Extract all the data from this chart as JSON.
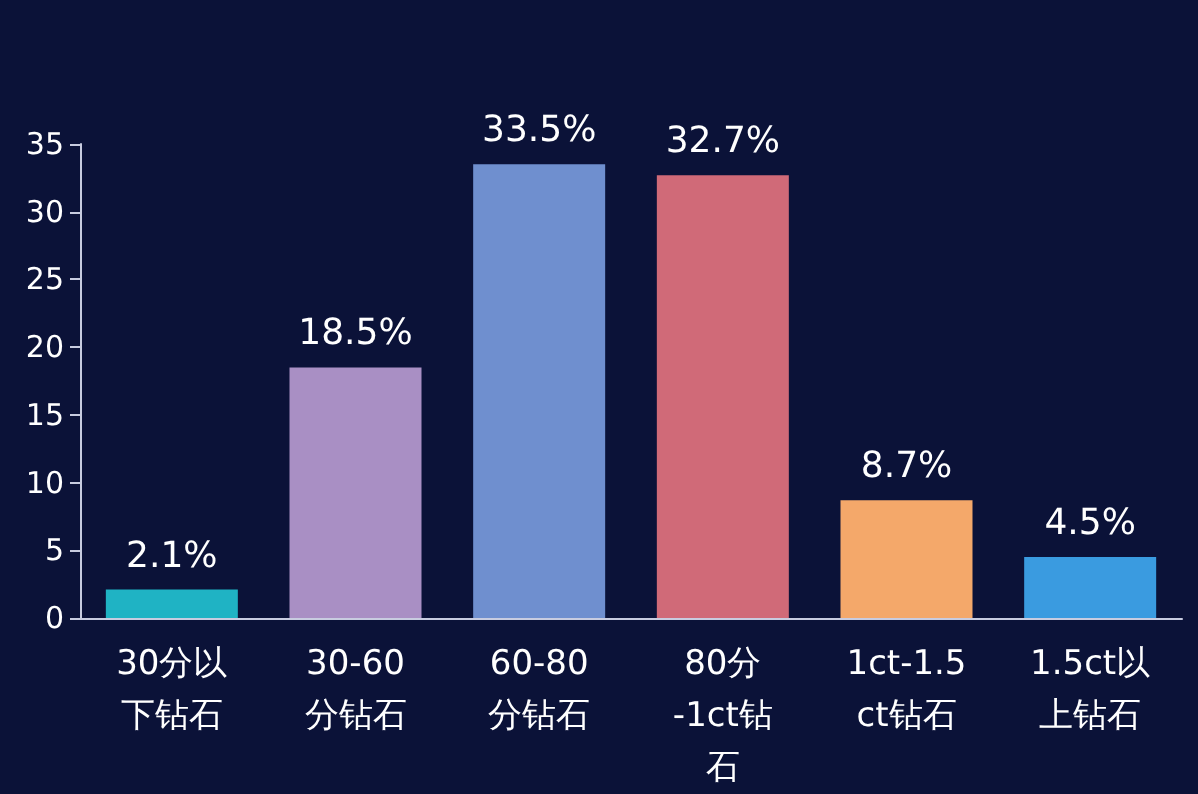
{
  "chart_data": {
    "type": "bar",
    "categories": [
      "30分以下钻石",
      "30-60分钻石",
      "60-80分钻石",
      "80分-1ct钻石",
      "1ct-1.5ct钻石",
      "1.5ct以上钻石"
    ],
    "values": [
      2.1,
      18.5,
      33.5,
      32.7,
      8.7,
      4.5
    ],
    "value_labels": [
      "2.1%",
      "18.5%",
      "33.5%",
      "32.7%",
      "8.7%",
      "4.5%"
    ],
    "colors": [
      "#1fb3c4",
      "#a98fc4",
      "#6f8fcf",
      "#d06a78",
      "#f4a86a",
      "#3a9be0"
    ],
    "ylim": [
      0,
      35
    ],
    "yticks": [
      0,
      5,
      10,
      15,
      20,
      25,
      30,
      35
    ],
    "grid": false
  }
}
